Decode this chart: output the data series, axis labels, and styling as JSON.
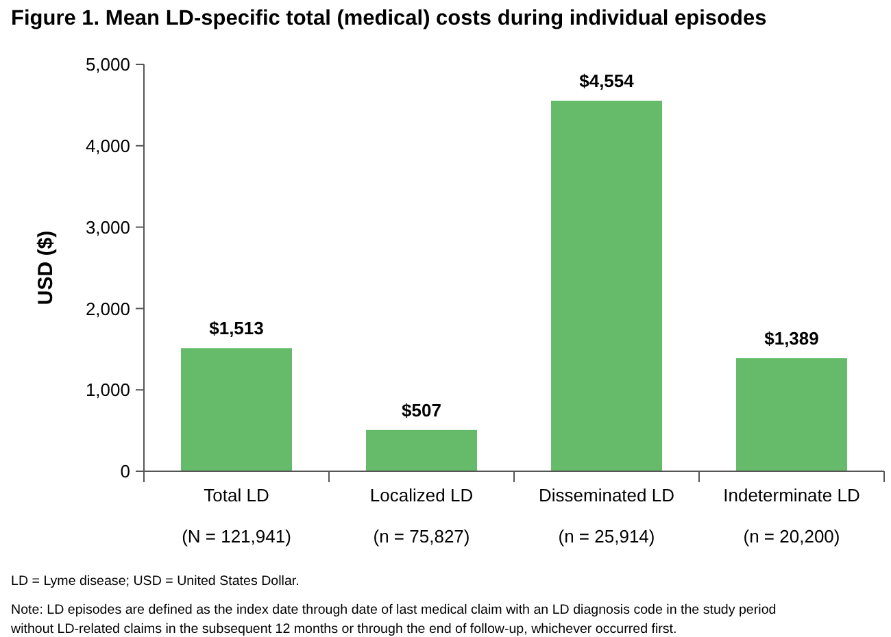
{
  "chart_data": {
    "type": "bar",
    "title": "Figure 1.  Mean LD-specific total (medical) costs during individual episodes",
    "ylabel": "USD ($)",
    "categories": [
      "Total LD\n(N = 121,941)",
      "Localized LD\n(n = 75,827)",
      "Disseminated LD\n(n = 25,914)",
      "Indeterminate LD\n(n = 20,200)"
    ],
    "values": [
      1513,
      507,
      4554,
      1389
    ],
    "value_labels": [
      "$1,513",
      "$507",
      "$4,554",
      "$1,389"
    ],
    "color": "#66bb6a",
    "ylim": [
      0,
      5000
    ],
    "yticks": [
      0,
      {
        "value": 1000,
        "label": "1,000"
      },
      {
        "value": 2000,
        "label": "2,000"
      },
      {
        "value": 3000,
        "label": "3,000"
      },
      {
        "value": 4000,
        "label": "4,000"
      },
      {
        "value": 5000,
        "label": "5,000"
      }
    ],
    "grid": false,
    "annotations": [
      "LD = Lyme disease; USD = United States Dollar.",
      "Note: LD episodes are defined as the index date through date of last medical claim with an LD diagnosis code in the study period without LD-related claims in the subsequent 12 months or through the end of follow-up, whichever occurred first."
    ]
  }
}
